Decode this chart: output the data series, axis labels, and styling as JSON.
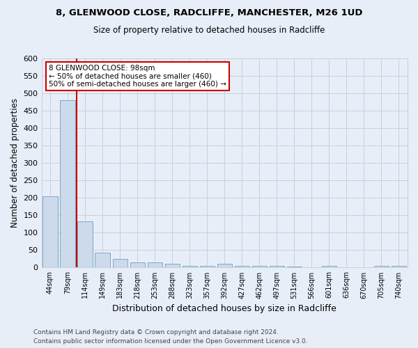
{
  "title": "8, GLENWOOD CLOSE, RADCLIFFE, MANCHESTER, M26 1UD",
  "subtitle": "Size of property relative to detached houses in Radcliffe",
  "xlabel": "Distribution of detached houses by size in Radcliffe",
  "ylabel": "Number of detached properties",
  "footer_line1": "Contains HM Land Registry data © Crown copyright and database right 2024.",
  "footer_line2": "Contains public sector information licensed under the Open Government Licence v3.0.",
  "categories": [
    "44sqm",
    "79sqm",
    "114sqm",
    "149sqm",
    "183sqm",
    "218sqm",
    "253sqm",
    "288sqm",
    "323sqm",
    "357sqm",
    "392sqm",
    "427sqm",
    "462sqm",
    "497sqm",
    "531sqm",
    "566sqm",
    "601sqm",
    "636sqm",
    "670sqm",
    "705sqm",
    "740sqm"
  ],
  "values": [
    204,
    480,
    133,
    43,
    24,
    15,
    15,
    11,
    4,
    5,
    11,
    4,
    4,
    4,
    3,
    1,
    5,
    1,
    1,
    5,
    4
  ],
  "bar_color": "#ccdaeb",
  "bar_edge_color": "#7aaac8",
  "ylim": [
    0,
    600
  ],
  "yticks": [
    0,
    50,
    100,
    150,
    200,
    250,
    300,
    350,
    400,
    450,
    500,
    550,
    600
  ],
  "red_line_x": 1.5,
  "annotation_text": "8 GLENWOOD CLOSE: 98sqm\n← 50% of detached houses are smaller (460)\n50% of semi-detached houses are larger (460) →",
  "annotation_box_color": "#ffffff",
  "annotation_box_edge": "#cc0000",
  "red_line_color": "#cc0000",
  "background_color": "#e8eef8",
  "grid_color": "#c8d0dc"
}
